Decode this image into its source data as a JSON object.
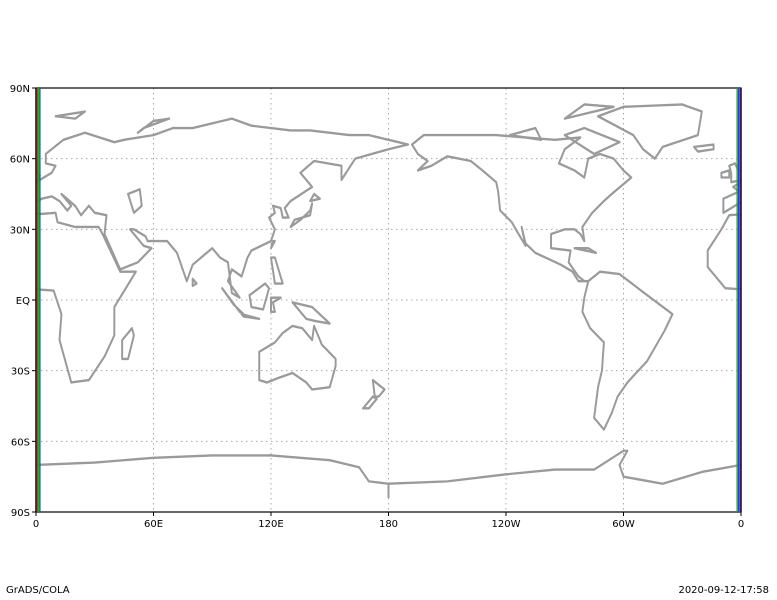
{
  "map": {
    "lon_range": [
      0,
      360
    ],
    "lat_range": [
      -90,
      90
    ],
    "x_tick_labels": [
      "0",
      "60E",
      "120E",
      "180",
      "120W",
      "60W",
      "0"
    ],
    "y_tick_labels": [
      "90N",
      "60N",
      "30N",
      "EQ",
      "30S",
      "60S",
      "90S"
    ],
    "grid": "dotted",
    "coastline_color": "#9a9a9a",
    "edge_colors_left": [
      "#000000",
      "#e02020",
      "#20b020",
      "#2040e0"
    ],
    "edge_colors_right": [
      "#20b020",
      "#2040e0",
      "#c020c0",
      "#000000"
    ]
  },
  "footer": {
    "left": "GrADS/COLA",
    "right": "2020-09-12-17:58"
  }
}
